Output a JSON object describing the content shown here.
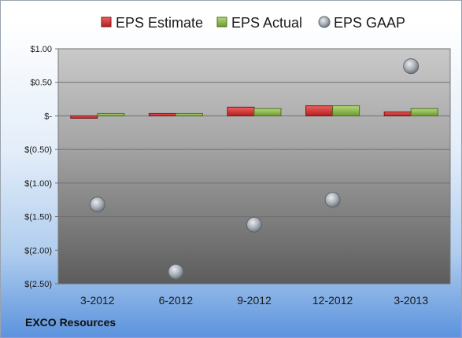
{
  "chart_data": {
    "type": "bar",
    "title": "",
    "xlabel": "",
    "ylabel": "",
    "categories": [
      "3-2012",
      "6-2012",
      "9-2012",
      "12-2012",
      "3-2013"
    ],
    "series": [
      {
        "name": "EPS Estimate",
        "kind": "bar",
        "color": "#d93a3a",
        "values": [
          -0.02,
          0.0,
          0.13,
          0.15,
          0.06
        ]
      },
      {
        "name": "EPS Actual",
        "kind": "bar",
        "color": "#8cb64a",
        "values": [
          0.01,
          0.02,
          0.11,
          0.15,
          0.11
        ]
      },
      {
        "name": "EPS GAAP",
        "kind": "scatter",
        "color": "#aeb4bb",
        "values": [
          -1.32,
          -2.32,
          -1.62,
          -1.25,
          0.74
        ]
      }
    ],
    "ylim": [
      -2.5,
      1.0
    ],
    "yticks": [
      1.0,
      0.5,
      0.0,
      -0.5,
      -1.0,
      -1.5,
      -2.0,
      -2.5
    ],
    "ytick_labels": [
      "$1.00",
      "$0.50",
      "$-",
      "$(0.50)",
      "$(1.00)",
      "$(1.50)",
      "$(2.00)",
      "$(2.50)"
    ],
    "legend_position": "top",
    "grid": true,
    "footer": "EXCO Resources"
  }
}
